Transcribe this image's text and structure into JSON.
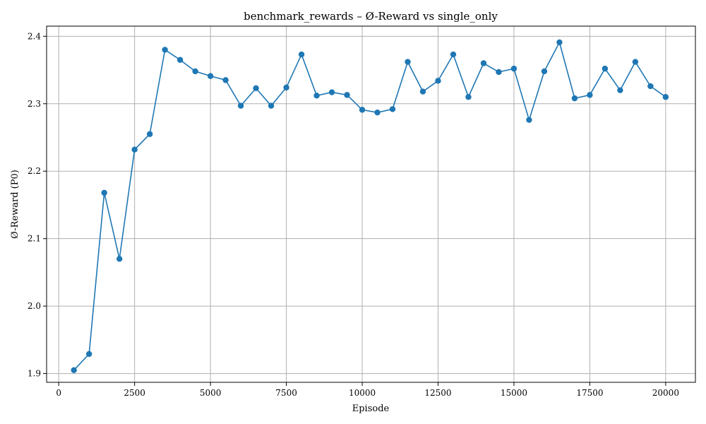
{
  "chart_data": {
    "type": "line",
    "title": "benchmark_rewards – Ø-Reward vs single_only",
    "xlabel": "Episode",
    "ylabel": "Ø-Reward (P0)",
    "xlim": [
      -400,
      20980
    ],
    "ylim": [
      1.887,
      2.415
    ],
    "xticks": [
      0,
      2500,
      5000,
      7500,
      10000,
      12500,
      15000,
      17500,
      20000
    ],
    "yticks": [
      1.9,
      2.0,
      2.1,
      2.2,
      2.3,
      2.4
    ],
    "grid": true,
    "color": "#1f77b4",
    "series": [
      {
        "x": [
          500,
          1000,
          1500,
          2000,
          2500,
          3000,
          3500,
          4000,
          4500,
          5000,
          5500,
          6000,
          6500,
          7000,
          7500,
          8000,
          8500,
          9000,
          9500,
          10000,
          10500,
          11000,
          11500,
          12000,
          12500,
          13000,
          13500,
          14000,
          14500,
          15000,
          15500,
          16000,
          16500,
          17000,
          17500,
          18000,
          18500,
          19000,
          19500,
          20000
        ],
        "values": [
          1.905,
          1.929,
          2.168,
          2.07,
          2.232,
          2.255,
          2.38,
          2.365,
          2.348,
          2.341,
          2.335,
          2.297,
          2.323,
          2.297,
          2.324,
          2.373,
          2.312,
          2.317,
          2.313,
          2.291,
          2.287,
          2.292,
          2.362,
          2.318,
          2.334,
          2.373,
          2.31,
          2.36,
          2.347,
          2.352,
          2.276,
          2.348,
          2.391,
          2.308,
          2.313,
          2.352,
          2.32,
          2.362,
          2.326,
          2.31
        ]
      }
    ]
  }
}
